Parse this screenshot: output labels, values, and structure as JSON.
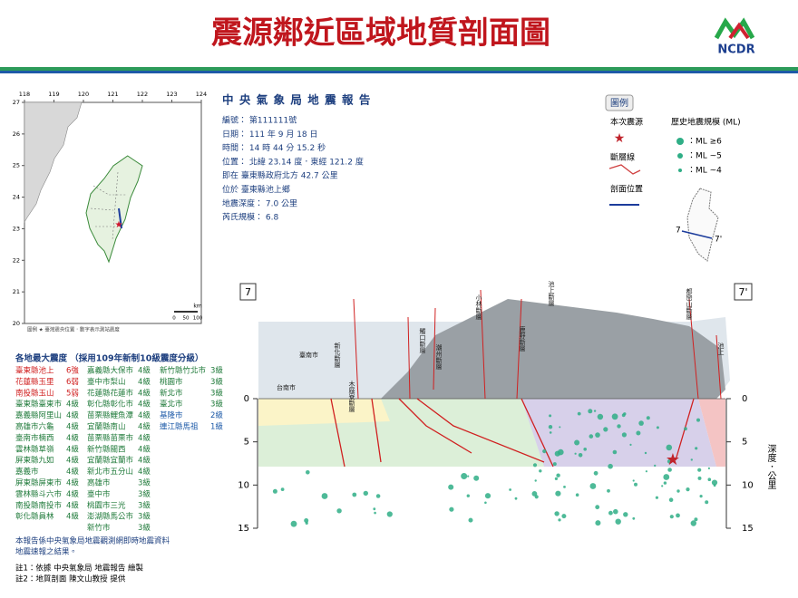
{
  "header": {
    "title": "震源鄰近區域地質剖面圖",
    "logo": "NCDR"
  },
  "map": {
    "lon_ticks": [
      118,
      119,
      120,
      121,
      122,
      123,
      124
    ],
    "lat_ticks": [
      27,
      26,
      25,
      24,
      23,
      22,
      21,
      20
    ],
    "scale_unit": "km",
    "scale_ticks": [
      0,
      50,
      100
    ],
    "legend": "圖例 ★ 臺灣震央位置．數字表示測站震度"
  },
  "report": {
    "title": "中 央 氣 象 局 地 震 報 告",
    "lines": [
      "編號： 第111111號",
      "日期： 111 年 9 月 18 日",
      "時間： 14 時 44 分 15.2 秒",
      "位置： 北緯 23.14 度．東經 121.2 度",
      "即在 臺東縣政府北方 42.7 公里",
      "位於 臺東縣池上鄉",
      "地震深度： 7.0 公里",
      "芮氏規模： 6.8"
    ]
  },
  "intensity": {
    "title": "各地最大震度 （採用109年新制10級震度分級）",
    "columns": [
      [
        [
          "臺東縣池上",
          "6強"
        ],
        [
          "花蓮縣玉里",
          "6弱"
        ],
        [
          "南投縣玉山",
          "5弱"
        ],
        [
          "臺東縣臺東市",
          "4級"
        ],
        [
          "嘉義縣阿里山",
          "4級"
        ],
        [
          "高雄市六龜",
          "4級"
        ],
        [
          "臺南市楠西",
          "4級"
        ],
        [
          "雲林縣草嶺",
          "4級"
        ],
        [
          "屏東縣九如",
          "4級"
        ],
        [
          "嘉義市",
          "4級"
        ],
        [
          "屏東縣屏東市",
          "4級"
        ],
        [
          "雲林縣斗六市",
          "4級"
        ],
        [
          "南投縣南投市",
          "4級"
        ],
        [
          "彰化縣員林",
          "4級"
        ]
      ],
      [
        [
          "嘉義縣大保市",
          "4級"
        ],
        [
          "臺中市梨山",
          "4級"
        ],
        [
          "花蓮縣花蓮市",
          "4級"
        ],
        [
          "彰化縣彰化市",
          "4級"
        ],
        [
          "苗栗縣鯉魚潭",
          "4級"
        ],
        [
          "宜蘭縣南山",
          "4級"
        ],
        [
          "苗栗縣苗栗市",
          "4級"
        ],
        [
          "新竹縣關西",
          "4級"
        ],
        [
          "宜蘭縣宜蘭市",
          "4級"
        ],
        [
          "新北市五分山",
          "4級"
        ],
        [
          "高雄市",
          "3級"
        ],
        [
          "臺中市",
          "3級"
        ],
        [
          "桃園市三光",
          "3級"
        ],
        [
          "澎湖縣馬公市",
          "3級"
        ],
        [
          "新竹市",
          "3級"
        ]
      ],
      [
        [
          "新竹縣竹北市",
          "3級"
        ],
        [
          "桃園市",
          "3級"
        ],
        [
          "新北市",
          "3級"
        ],
        [
          "臺北市",
          "3級"
        ],
        [
          "基隆市",
          "2級"
        ],
        [
          "連江縣馬祖",
          "1級"
        ]
      ]
    ]
  },
  "notes": [
    "本報告係中央氣象局地震觀測網即時地震資料",
    "地震速報之結果。",
    "註1：依據 中央氣象局 地震報告 繪製",
    "註2：地質剖面 陳文山教授 提供"
  ],
  "legend": {
    "title": "圖例",
    "epicenter": "本次震源",
    "fault": "斷層線",
    "profile": "剖面位置",
    "history_title": "歷史地震規模 (ML)",
    "history_items": [
      "：ML ≥6",
      "：ML ~5",
      "：ML ~4"
    ],
    "profile_start": "7",
    "profile_end": "7'"
  },
  "section": {
    "start_label": "7",
    "end_label": "7'",
    "depth_ticks": [
      0,
      5,
      10,
      15
    ],
    "depth_label": "深度．公里",
    "place_labels": [
      "臺南市",
      "台南市",
      "新化斷層",
      "木屐寮斷層",
      "觸口斷層",
      "潮州斷層",
      "小林斷層",
      "鹿野斷層",
      "池上斷層",
      "都巒山斷層",
      "池上"
    ]
  }
}
